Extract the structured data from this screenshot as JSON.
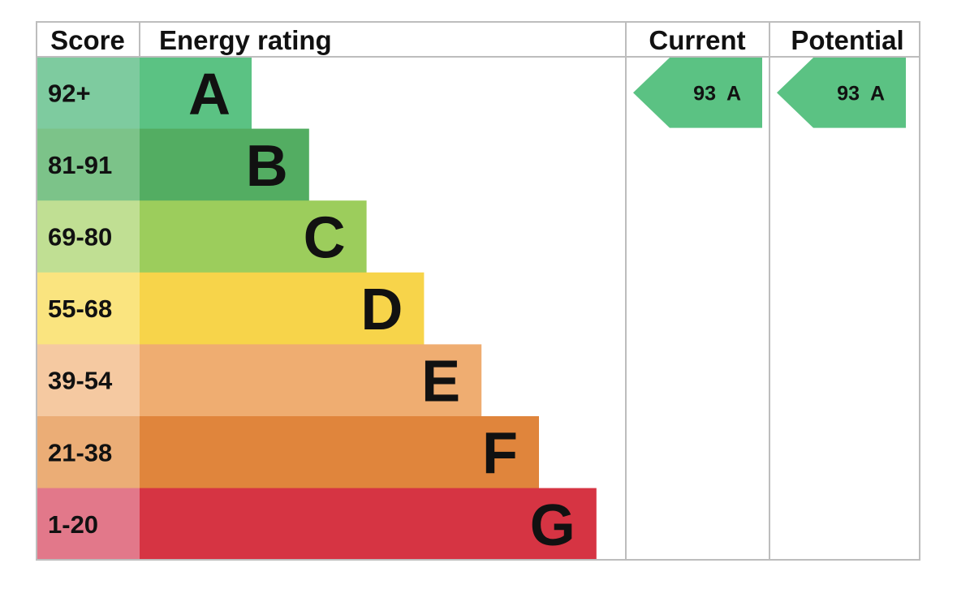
{
  "headers": {
    "score": "Score",
    "energy_rating": "Energy rating",
    "current": "Current",
    "potential": "Potential"
  },
  "chart_data": {
    "type": "bar",
    "bands": [
      {
        "score": "92+",
        "letter": "A",
        "color": "#5bc283",
        "score_bg": "#7ecb9f"
      },
      {
        "score": "81-91",
        "letter": "B",
        "color": "#53ad62",
        "score_bg": "#7cc389"
      },
      {
        "score": "69-80",
        "letter": "C",
        "color": "#9ccd5c",
        "score_bg": "#c0df93"
      },
      {
        "score": "55-68",
        "letter": "D",
        "color": "#f7d44a",
        "score_bg": "#fae47f"
      },
      {
        "score": "39-54",
        "letter": "E",
        "color": "#efad71",
        "score_bg": "#f5c9a1"
      },
      {
        "score": "21-38",
        "letter": "F",
        "color": "#e0853c",
        "score_bg": "#ebad76"
      },
      {
        "score": "1-20",
        "letter": "G",
        "color": "#d63443",
        "score_bg": "#e2788a"
      }
    ],
    "current": {
      "value": 93,
      "band": "A",
      "label": "93  A",
      "color": "#5bc283"
    },
    "potential": {
      "value": 93,
      "band": "A",
      "label": "93  A",
      "color": "#5bc283"
    }
  }
}
